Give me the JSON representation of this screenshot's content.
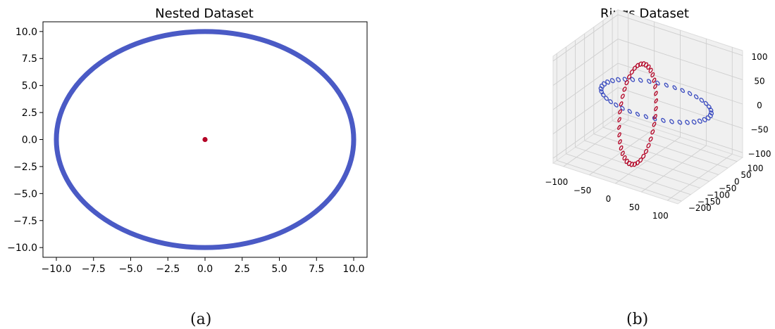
{
  "colors": {
    "outer": "#3b4cc0",
    "inner": "#b40426",
    "axis": "#000000",
    "pane": "#f2f2f2",
    "grid": "#cfcfcf"
  },
  "captions": {
    "a": "(a)",
    "b": "(b)"
  },
  "chart_data": [
    {
      "type": "scatter",
      "title": "Nested Dataset",
      "xlim": [
        -10.9,
        10.9
      ],
      "ylim": [
        -10.9,
        10.9
      ],
      "xticks": [
        -10.0,
        -7.5,
        -5.0,
        -2.5,
        0.0,
        2.5,
        5.0,
        7.5,
        10.0
      ],
      "xtick_labels": [
        "−10.0",
        "−7.5",
        "−5.0",
        "−2.5",
        "0.0",
        "2.5",
        "5.0",
        "7.5",
        "10.0"
      ],
      "yticks": [
        10.0,
        7.5,
        5.0,
        2.5,
        0.0,
        -2.5,
        -5.0,
        -7.5,
        -10.0
      ],
      "ytick_labels": [
        "10.0",
        "7.5",
        "5.0",
        "2.5",
        "0.0",
        "−2.5",
        "−5.0",
        "−7.5",
        "−10.0"
      ],
      "grid": false,
      "series": [
        {
          "shape": "circle",
          "center": [
            0,
            0
          ],
          "radius": 10.0,
          "color": "#3b4cc0"
        },
        {
          "shape": "circle",
          "center": [
            0,
            0
          ],
          "radius": 0.08,
          "color": "#b40426"
        }
      ]
    },
    {
      "type": "scatter3d",
      "title": "Rings Dataset",
      "xlim": [
        -120,
        120
      ],
      "ylim": [
        -220,
        130
      ],
      "zlim": [
        -110,
        110
      ],
      "xtick_labels": [
        "−100",
        "−50",
        "0",
        "50",
        "100"
      ],
      "ytick_labels": [
        "100",
        "50",
        "0",
        "−50",
        "−100",
        "−150",
        "−200"
      ],
      "ztick_labels": [
        "100",
        "50",
        "0",
        "−50",
        "−100"
      ],
      "grid": true,
      "series": [
        {
          "ring": "horizontal",
          "plane": "z = 0",
          "radius": 100,
          "center": [
            0,
            0,
            0
          ],
          "n_points": 40,
          "color": "#3b4cc0"
        },
        {
          "ring": "vertical",
          "plane": "x = 0",
          "radius": 100,
          "center": [
            0,
            -100,
            0
          ],
          "n_points": 40,
          "color": "#b40426"
        }
      ]
    }
  ]
}
